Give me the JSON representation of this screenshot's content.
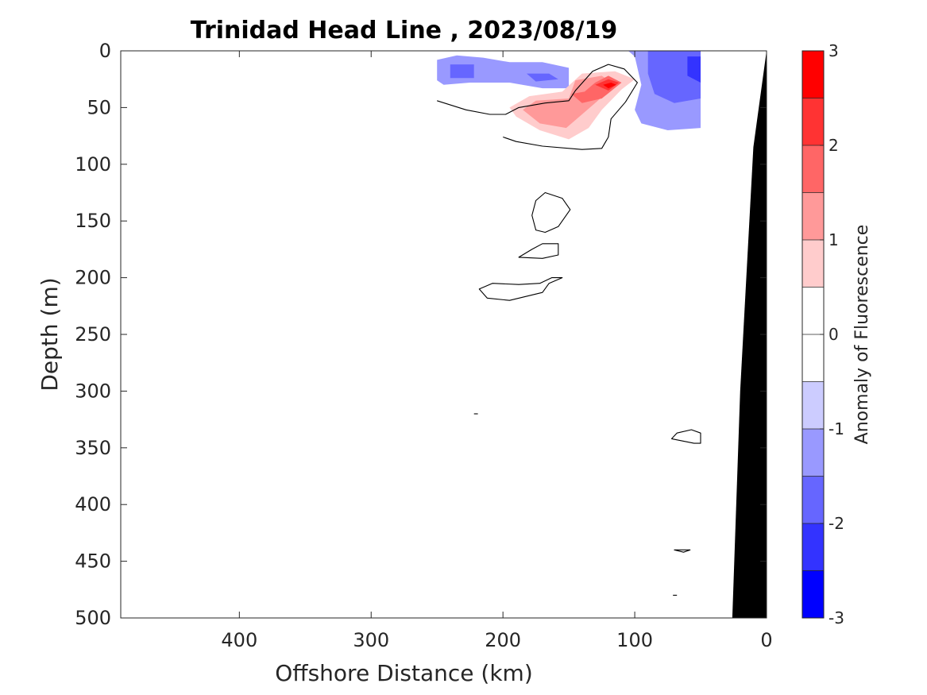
{
  "chart_data": {
    "type": "heatmap",
    "title": "Trinidad Head Line , 2023/08/19",
    "xlabel": "Offshore Distance (km)",
    "ylabel": "Depth (m)",
    "xlim": [
      490,
      0
    ],
    "ylim": [
      0,
      500
    ],
    "x_reversed": true,
    "y_reversed": true,
    "xticks": [
      400,
      300,
      200,
      100,
      0
    ],
    "yticks": [
      0,
      50,
      100,
      150,
      200,
      250,
      300,
      350,
      400,
      450,
      500
    ],
    "colorbar": {
      "label": "Anomaly of Fluorescence",
      "range": [
        -3,
        3
      ],
      "ticks": [
        3,
        2,
        1,
        0,
        -1,
        -2,
        -3
      ],
      "levels": [
        -3,
        -2.5,
        -2,
        -1.5,
        -1,
        -0.5,
        0,
        0.5,
        1,
        1.5,
        2,
        2.5,
        3
      ],
      "colors": [
        "#0000ff",
        "#3333ff",
        "#6666ff",
        "#9999ff",
        "#ccccff",
        "#ffffff",
        "#ffffff",
        "#ffcccc",
        "#ff9999",
        "#ff6666",
        "#ff3333",
        "#ff0000"
      ]
    },
    "filled_regions": [
      {
        "level": -1,
        "color": "#9999ff",
        "points": [
          [
            250,
            8
          ],
          [
            235,
            4
          ],
          [
            215,
            6
          ],
          [
            195,
            10
          ],
          [
            170,
            10
          ],
          [
            150,
            15
          ],
          [
            150,
            33
          ],
          [
            170,
            33
          ],
          [
            195,
            28
          ],
          [
            225,
            28
          ],
          [
            245,
            30
          ],
          [
            250,
            26
          ]
        ]
      },
      {
        "level": -1.5,
        "color": "#6666ff",
        "points": [
          [
            240,
            12
          ],
          [
            222,
            12
          ],
          [
            222,
            24
          ],
          [
            240,
            24
          ]
        ]
      },
      {
        "level": -1.5,
        "color": "#6666ff",
        "points": [
          [
            182,
            20
          ],
          [
            165,
            20
          ],
          [
            158,
            25
          ],
          [
            175,
            27
          ]
        ]
      },
      {
        "level": -1,
        "color": "#9999ff",
        "points": [
          [
            105,
            0
          ],
          [
            50,
            0
          ],
          [
            50,
            68
          ],
          [
            75,
            70
          ],
          [
            95,
            64
          ],
          [
            100,
            52
          ],
          [
            95,
            30
          ],
          [
            100,
            5
          ]
        ]
      },
      {
        "level": -1.5,
        "color": "#6666ff",
        "points": [
          [
            90,
            0
          ],
          [
            50,
            0
          ],
          [
            50,
            42
          ],
          [
            70,
            46
          ],
          [
            85,
            38
          ],
          [
            90,
            20
          ]
        ]
      },
      {
        "level": -2,
        "color": "#3333ff",
        "points": [
          [
            60,
            5
          ],
          [
            50,
            5
          ],
          [
            50,
            28
          ],
          [
            60,
            22
          ]
        ]
      },
      {
        "level": 1,
        "color": "#ffcccc",
        "points": [
          [
            195,
            50
          ],
          [
            190,
            58
          ],
          [
            172,
            70
          ],
          [
            150,
            78
          ],
          [
            135,
            68
          ],
          [
            125,
            52
          ],
          [
            110,
            34
          ],
          [
            100,
            25
          ],
          [
            115,
            18
          ],
          [
            140,
            20
          ],
          [
            155,
            36
          ],
          [
            180,
            40
          ]
        ]
      },
      {
        "level": 1.5,
        "color": "#ff9999",
        "points": [
          [
            185,
            52
          ],
          [
            172,
            64
          ],
          [
            152,
            68
          ],
          [
            140,
            56
          ],
          [
            128,
            44
          ],
          [
            115,
            30
          ],
          [
            125,
            22
          ],
          [
            145,
            26
          ],
          [
            150,
            42
          ],
          [
            175,
            44
          ]
        ]
      },
      {
        "level": 2,
        "color": "#ff6666",
        "points": [
          [
            148,
            38
          ],
          [
            138,
            36
          ],
          [
            130,
            28
          ],
          [
            120,
            22
          ],
          [
            110,
            28
          ],
          [
            125,
            42
          ],
          [
            140,
            46
          ]
        ]
      },
      {
        "level": 2.5,
        "color": "#ff3333",
        "points": [
          [
            130,
            30
          ],
          [
            120,
            25
          ],
          [
            112,
            28
          ],
          [
            120,
            35
          ]
        ]
      },
      {
        "level": 3,
        "color": "#ff0000",
        "points": [
          [
            124,
            30
          ],
          [
            118,
            28
          ],
          [
            114,
            30
          ],
          [
            120,
            33
          ]
        ]
      }
    ],
    "zero_contours": [
      {
        "closed": false,
        "points": [
          [
            250,
            44
          ],
          [
            228,
            52
          ],
          [
            210,
            56
          ],
          [
            198,
            56
          ],
          [
            188,
            50
          ],
          [
            168,
            46
          ],
          [
            150,
            44
          ],
          [
            145,
            35
          ],
          [
            132,
            18
          ],
          [
            120,
            12
          ],
          [
            108,
            16
          ],
          [
            98,
            28
          ],
          [
            107,
            45
          ],
          [
            118,
            60
          ],
          [
            120,
            76
          ],
          [
            125,
            86
          ],
          [
            140,
            87
          ],
          [
            170,
            84
          ],
          [
            190,
            80
          ],
          [
            200,
            76
          ]
        ]
      },
      {
        "closed": true,
        "points": [
          [
            168,
            125
          ],
          [
            155,
            130
          ],
          [
            149,
            140
          ],
          [
            158,
            155
          ],
          [
            168,
            160
          ],
          [
            175,
            158
          ],
          [
            178,
            145
          ],
          [
            175,
            132
          ]
        ]
      },
      {
        "closed": true,
        "points": [
          [
            188,
            182
          ],
          [
            178,
            175
          ],
          [
            170,
            170
          ],
          [
            158,
            170
          ],
          [
            158,
            180
          ],
          [
            170,
            183
          ]
        ]
      },
      {
        "closed": true,
        "points": [
          [
            218,
            210
          ],
          [
            208,
            205
          ],
          [
            188,
            206
          ],
          [
            172,
            205
          ],
          [
            163,
            200
          ],
          [
            155,
            200
          ],
          [
            165,
            205
          ],
          [
            170,
            213
          ],
          [
            195,
            220
          ],
          [
            212,
            218
          ]
        ]
      },
      {
        "closed": false,
        "points": [
          [
            222,
            320
          ],
          [
            219,
            320
          ]
        ]
      },
      {
        "closed": true,
        "points": [
          [
            72,
            342
          ],
          [
            55,
            346
          ],
          [
            50,
            346
          ],
          [
            50,
            337
          ],
          [
            57,
            334
          ],
          [
            68,
            337
          ]
        ]
      },
      {
        "closed": true,
        "points": [
          [
            70,
            440
          ],
          [
            63,
            442
          ],
          [
            58,
            440
          ],
          [
            63,
            440
          ]
        ]
      },
      {
        "closed": false,
        "points": [
          [
            71,
            480
          ],
          [
            68,
            480
          ]
        ]
      }
    ],
    "bathymetry": {
      "color": "#000000",
      "points": [
        [
          0,
          0
        ],
        [
          10,
          85
        ],
        [
          20,
          300
        ],
        [
          26,
          500
        ],
        [
          0,
          500
        ]
      ]
    }
  }
}
